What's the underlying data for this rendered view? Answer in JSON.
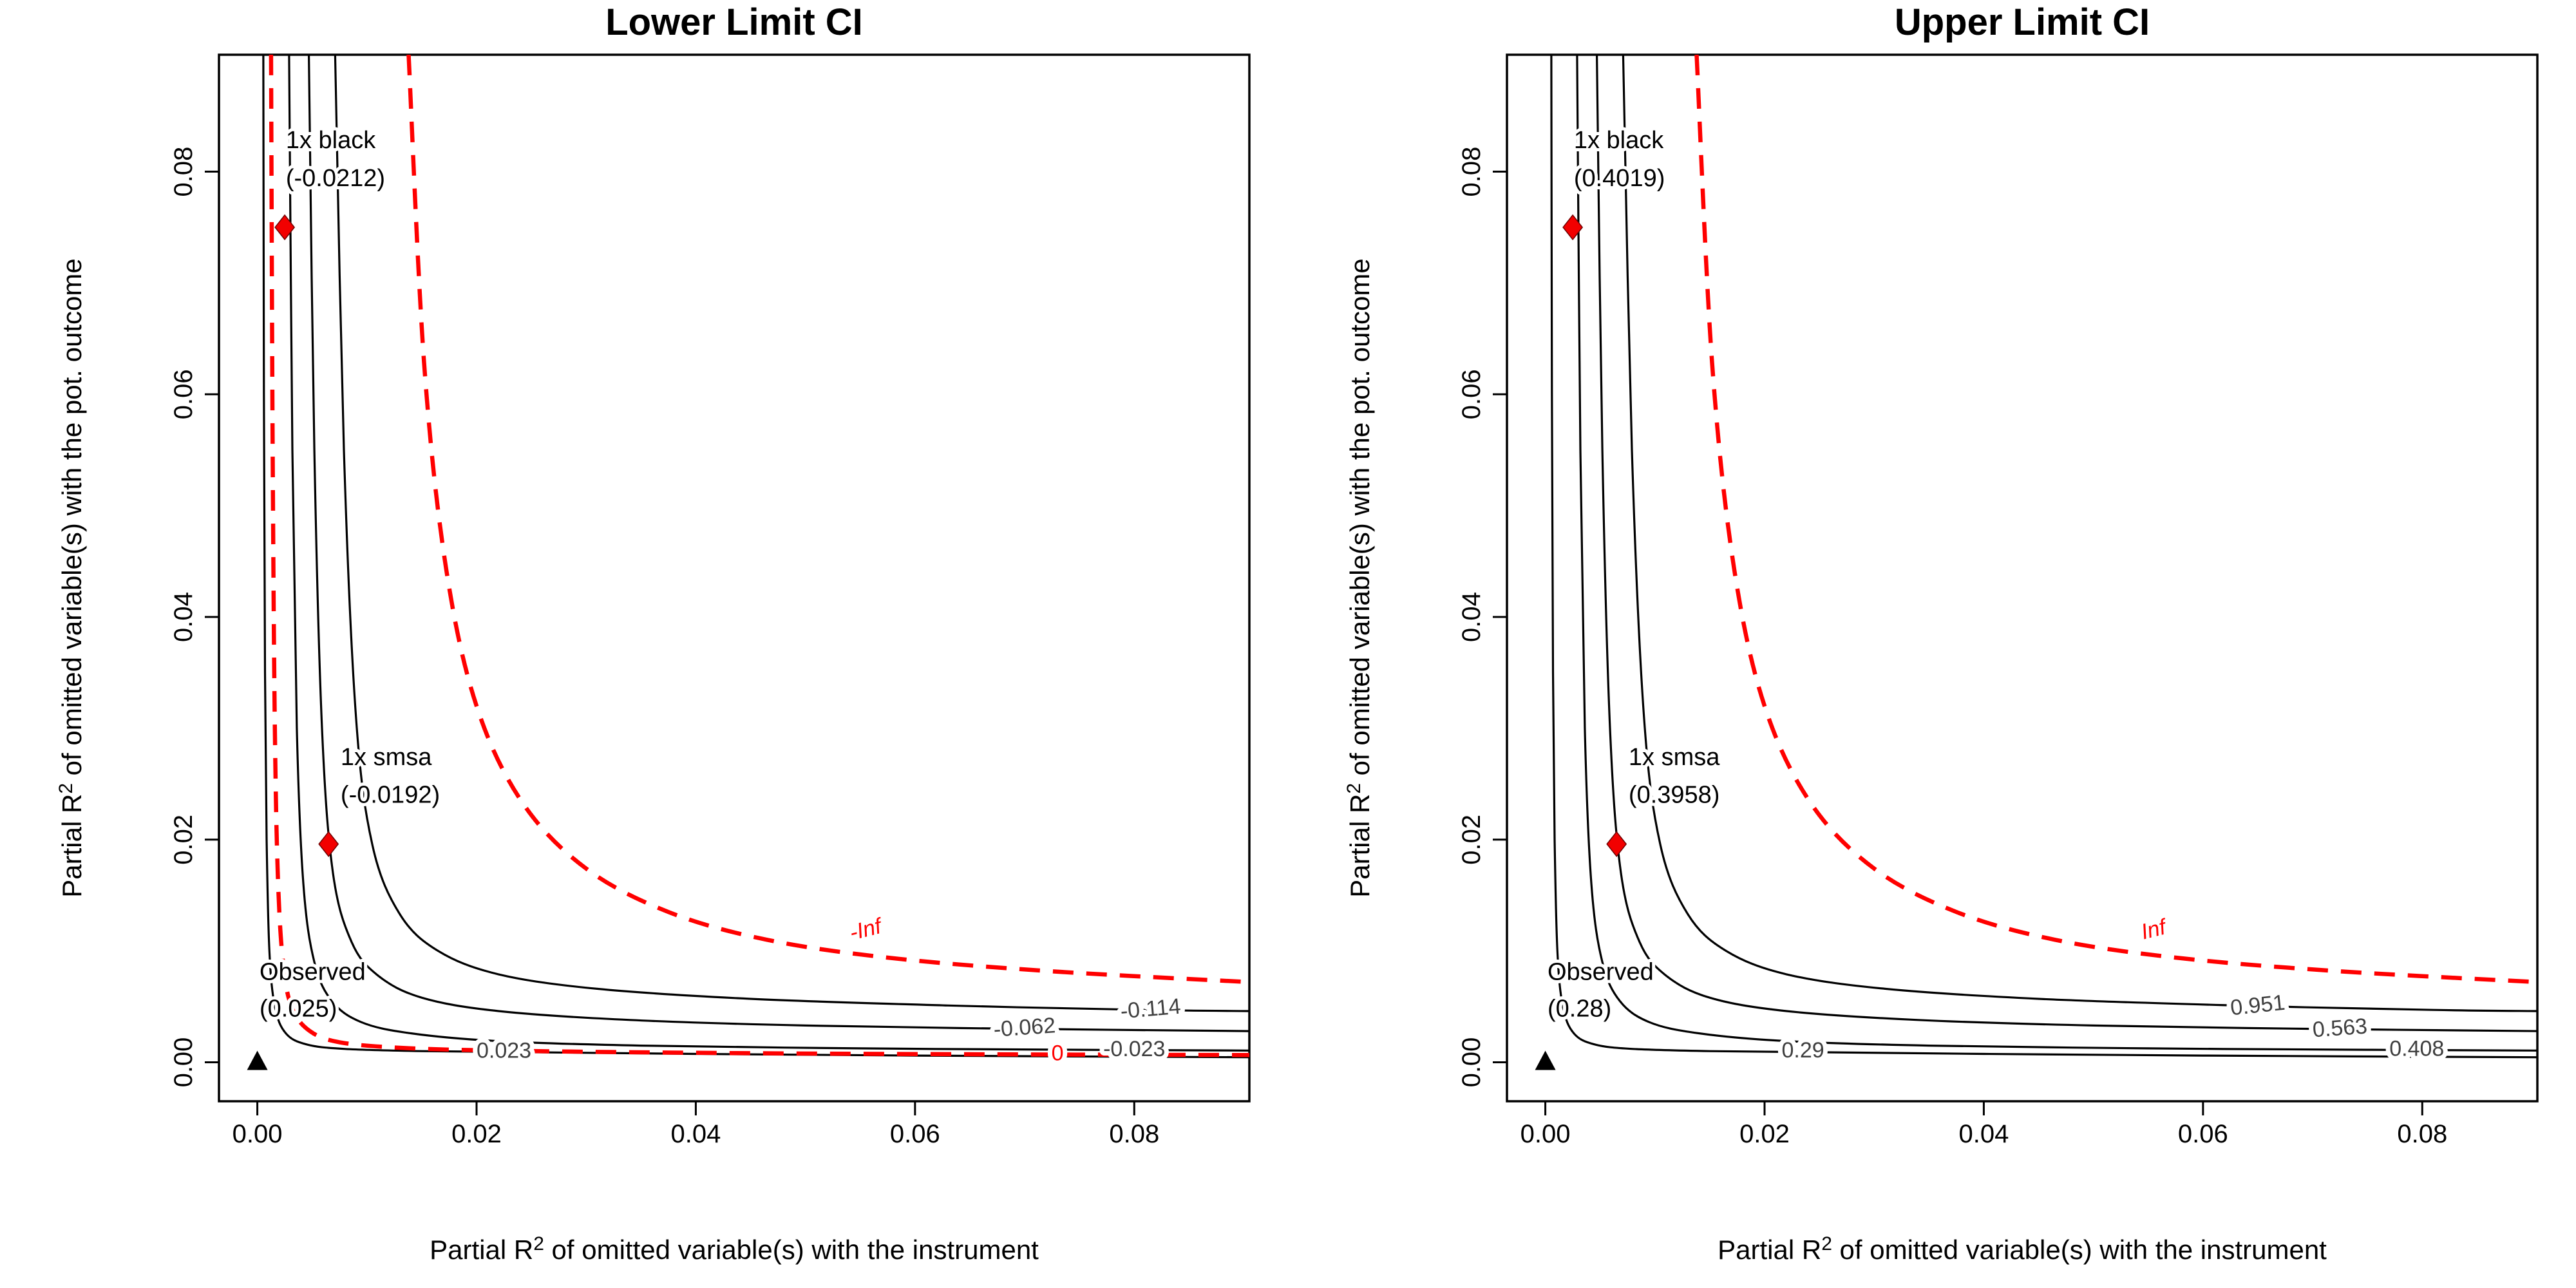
{
  "chart_data": {
    "type": "contour",
    "layout": {
      "x_range": [
        -0.0035,
        0.0905
      ],
      "y_range": [
        -0.0035,
        0.0905
      ],
      "grid": false,
      "colors": {
        "contour_black": "#000000",
        "contour_red": "#FF0000",
        "contour_label_gray": "#3f3f3f",
        "marker_red": "#F20000",
        "marker_black": "#000000"
      }
    },
    "x_axis": {
      "ticks": [
        0,
        0.02,
        0.04,
        0.06,
        0.08
      ],
      "tick_labels": [
        "0.00",
        "0.02",
        "0.04",
        "0.06",
        "0.08"
      ],
      "title_prefix": "Partial R",
      "title_sup": "2",
      "title_suffix": " of omitted variable(s) with the instrument"
    },
    "y_axis": {
      "ticks": [
        0,
        0.02,
        0.04,
        0.06,
        0.08
      ],
      "tick_labels": [
        "0.00",
        "0.02",
        "0.04",
        "0.06",
        "0.08"
      ],
      "title_prefix": "Partial R",
      "title_sup": "2",
      "title_suffix": " of omitted variable(s) with the pot. outcome"
    },
    "panels": [
      {
        "id": "lower",
        "title": "Lower Limit CI",
        "contours": [
          {
            "label": "0.023",
            "color": "black",
            "dashed": false,
            "italic": false,
            "label_x": 0.0225,
            "label_y": 0.00092,
            "label_rot": 0,
            "points": [
              [
                0.00055,
                0.0905
              ],
              [
                0.0006,
                0.06
              ],
              [
                0.0007,
                0.035
              ],
              [
                0.00085,
                0.02
              ],
              [
                0.0011,
                0.01
              ],
              [
                0.0016,
                0.005
              ],
              [
                0.0026,
                0.0026
              ],
              [
                0.0045,
                0.0016
              ],
              [
                0.008,
                0.0012
              ],
              [
                0.015,
                0.001
              ],
              [
                0.025,
                0.0009
              ],
              [
                0.04,
                0.00075
              ],
              [
                0.06,
                0.0006
              ],
              [
                0.0905,
                0.00045
              ]
            ]
          },
          {
            "label": "0",
            "color": "red",
            "dashed": true,
            "italic": false,
            "label_x": 0.073,
            "label_y": 0.00068,
            "label_rot": 0,
            "points": [
              [
                0.00125,
                0.0905
              ],
              [
                0.0014,
                0.055
              ],
              [
                0.0016,
                0.03
              ],
              [
                0.0019,
                0.016
              ],
              [
                0.0024,
                0.0085
              ],
              [
                0.0032,
                0.0048
              ],
              [
                0.0048,
                0.0028
              ],
              [
                0.0075,
                0.0018
              ],
              [
                0.013,
                0.0013
              ],
              [
                0.022,
                0.00105
              ],
              [
                0.04,
                0.00085
              ],
              [
                0.065,
                0.00072
              ],
              [
                0.0905,
                0.00065
              ]
            ]
          },
          {
            "label": "-0.023",
            "color": "black",
            "dashed": false,
            "italic": false,
            "label_x": 0.08,
            "label_y": 0.00107,
            "label_rot": 0,
            "points": [
              [
                0.0029,
                0.0905
              ],
              [
                0.0032,
                0.055
              ],
              [
                0.0036,
                0.03
              ],
              [
                0.0042,
                0.016
              ],
              [
                0.0052,
                0.009
              ],
              [
                0.0068,
                0.0055
              ],
              [
                0.0095,
                0.0036
              ],
              [
                0.014,
                0.0026
              ],
              [
                0.022,
                0.0019
              ],
              [
                0.035,
                0.0015
              ],
              [
                0.055,
                0.00125
              ],
              [
                0.075,
                0.00112
              ],
              [
                0.0905,
                0.00105
              ]
            ]
          },
          {
            "label": "-0.062",
            "color": "black",
            "dashed": false,
            "italic": false,
            "label_x": 0.07,
            "label_y": 0.003,
            "label_rot": -4,
            "points": [
              [
                0.0047,
                0.0905
              ],
              [
                0.0052,
                0.055
              ],
              [
                0.0059,
                0.03
              ],
              [
                0.0069,
                0.017
              ],
              [
                0.0086,
                0.0108
              ],
              [
                0.011,
                0.0078
              ],
              [
                0.015,
                0.0058
              ],
              [
                0.022,
                0.0046
              ],
              [
                0.034,
                0.0038
              ],
              [
                0.05,
                0.0033
              ],
              [
                0.07,
                0.003
              ],
              [
                0.0905,
                0.0028
              ]
            ]
          },
          {
            "label": "-0.114",
            "color": "black",
            "dashed": false,
            "italic": false,
            "label_x": 0.0815,
            "label_y": 0.00468,
            "label_rot": -5,
            "points": [
              [
                0.0071,
                0.0905
              ],
              [
                0.0079,
                0.055
              ],
              [
                0.009,
                0.031
              ],
              [
                0.0105,
                0.0195
              ],
              [
                0.013,
                0.0133
              ],
              [
                0.0165,
                0.01
              ],
              [
                0.022,
                0.0079
              ],
              [
                0.031,
                0.0066
              ],
              [
                0.045,
                0.0057
              ],
              [
                0.063,
                0.0051
              ],
              [
                0.081,
                0.0047
              ],
              [
                0.0905,
                0.0046
              ]
            ]
          },
          {
            "label": "-Inf",
            "color": "red",
            "dashed": true,
            "italic": true,
            "label_x": 0.0555,
            "label_y": 0.0118,
            "label_rot": -14,
            "points": [
              [
                0.0138,
                0.0905
              ],
              [
                0.0152,
                0.063
              ],
              [
                0.0172,
                0.0445
              ],
              [
                0.02,
                0.032
              ],
              [
                0.0242,
                0.0233
              ],
              [
                0.03,
                0.0174
              ],
              [
                0.0375,
                0.0135
              ],
              [
                0.0465,
                0.011
              ],
              [
                0.0575,
                0.0094
              ],
              [
                0.072,
                0.0082
              ],
              [
                0.0905,
                0.0072
              ]
            ]
          }
        ],
        "markers": [
          {
            "shape": "triangle",
            "color": "black",
            "x": 0,
            "y": 0,
            "label_lines": [
              "Observed",
              "(0.025)"
            ],
            "label_x": 0.0002,
            "label_ys": [
              0.0074,
              0.0041
            ],
            "anchor": "start"
          },
          {
            "shape": "diamond",
            "color": "red",
            "x": 0.0065,
            "y": 0.0196,
            "label_lines": [
              "1x smsa",
              "(-0.0192)"
            ],
            "label_x": 0.0076,
            "label_ys": [
              0.0267,
              0.0233
            ],
            "anchor": "start"
          },
          {
            "shape": "diamond",
            "color": "red",
            "x": 0.0025,
            "y": 0.075,
            "label_lines": [
              "1x black",
              "(-0.0212)"
            ],
            "label_x": 0.0026,
            "label_ys": [
              0.0821,
              0.0787
            ],
            "anchor": "start"
          }
        ]
      },
      {
        "id": "upper",
        "title": "Upper Limit CI",
        "contours": [
          {
            "label": "0.29",
            "color": "black",
            "dashed": false,
            "italic": false,
            "label_x": 0.0235,
            "label_y": 0.00095,
            "label_rot": 0,
            "points": [
              [
                0.00055,
                0.0905
              ],
              [
                0.0006,
                0.06
              ],
              [
                0.0007,
                0.035
              ],
              [
                0.00085,
                0.02
              ],
              [
                0.0011,
                0.01
              ],
              [
                0.0016,
                0.005
              ],
              [
                0.0026,
                0.0026
              ],
              [
                0.0045,
                0.0016
              ],
              [
                0.008,
                0.0012
              ],
              [
                0.015,
                0.001
              ],
              [
                0.025,
                0.0009
              ],
              [
                0.04,
                0.00075
              ],
              [
                0.06,
                0.0006
              ],
              [
                0.0905,
                0.00045
              ]
            ]
          },
          {
            "label": "0.408",
            "color": "black",
            "dashed": false,
            "italic": false,
            "label_x": 0.0795,
            "label_y": 0.0011,
            "label_rot": 0,
            "points": [
              [
                0.0029,
                0.0905
              ],
              [
                0.0032,
                0.055
              ],
              [
                0.0036,
                0.03
              ],
              [
                0.0042,
                0.016
              ],
              [
                0.0052,
                0.009
              ],
              [
                0.0068,
                0.0055
              ],
              [
                0.0095,
                0.0036
              ],
              [
                0.014,
                0.0026
              ],
              [
                0.022,
                0.0019
              ],
              [
                0.035,
                0.0015
              ],
              [
                0.055,
                0.00125
              ],
              [
                0.075,
                0.00112
              ],
              [
                0.0905,
                0.00105
              ]
            ]
          },
          {
            "label": "0.563",
            "color": "black",
            "dashed": false,
            "italic": false,
            "label_x": 0.0725,
            "label_y": 0.00295,
            "label_rot": -4,
            "points": [
              [
                0.0047,
                0.0905
              ],
              [
                0.0052,
                0.055
              ],
              [
                0.0059,
                0.03
              ],
              [
                0.0069,
                0.017
              ],
              [
                0.0086,
                0.0108
              ],
              [
                0.011,
                0.0078
              ],
              [
                0.015,
                0.0058
              ],
              [
                0.022,
                0.0046
              ],
              [
                0.034,
                0.0038
              ],
              [
                0.05,
                0.0033
              ],
              [
                0.07,
                0.003
              ],
              [
                0.0905,
                0.0028
              ]
            ]
          },
          {
            "label": "0.951",
            "color": "black",
            "dashed": false,
            "italic": false,
            "label_x": 0.065,
            "label_y": 0.005,
            "label_rot": -6,
            "points": [
              [
                0.0071,
                0.0905
              ],
              [
                0.0079,
                0.055
              ],
              [
                0.009,
                0.031
              ],
              [
                0.0105,
                0.0195
              ],
              [
                0.013,
                0.0133
              ],
              [
                0.0165,
                0.01
              ],
              [
                0.022,
                0.0079
              ],
              [
                0.031,
                0.0066
              ],
              [
                0.045,
                0.0057
              ],
              [
                0.063,
                0.0051
              ],
              [
                0.081,
                0.0047
              ],
              [
                0.0905,
                0.0046
              ]
            ]
          },
          {
            "label": "Inf",
            "color": "red",
            "dashed": true,
            "italic": true,
            "label_x": 0.0555,
            "label_y": 0.0118,
            "label_rot": -14,
            "points": [
              [
                0.0138,
                0.0905
              ],
              [
                0.0152,
                0.063
              ],
              [
                0.0172,
                0.0445
              ],
              [
                0.02,
                0.032
              ],
              [
                0.0242,
                0.0233
              ],
              [
                0.03,
                0.0174
              ],
              [
                0.0375,
                0.0135
              ],
              [
                0.0465,
                0.011
              ],
              [
                0.0575,
                0.0094
              ],
              [
                0.072,
                0.0082
              ],
              [
                0.0905,
                0.0072
              ]
            ]
          }
        ],
        "markers": [
          {
            "shape": "triangle",
            "color": "black",
            "x": 0,
            "y": 0,
            "label_lines": [
              "Observed",
              "(0.28)"
            ],
            "label_x": 0.0002,
            "label_ys": [
              0.0074,
              0.0041
            ],
            "anchor": "start"
          },
          {
            "shape": "diamond",
            "color": "red",
            "x": 0.0065,
            "y": 0.0196,
            "label_lines": [
              "1x smsa",
              "(0.3958)"
            ],
            "label_x": 0.0076,
            "label_ys": [
              0.0267,
              0.0233
            ],
            "anchor": "start"
          },
          {
            "shape": "diamond",
            "color": "red",
            "x": 0.0025,
            "y": 0.075,
            "label_lines": [
              "1x black",
              "(0.4019)"
            ],
            "label_x": 0.0026,
            "label_ys": [
              0.0821,
              0.0787
            ],
            "anchor": "start"
          }
        ]
      }
    ]
  }
}
